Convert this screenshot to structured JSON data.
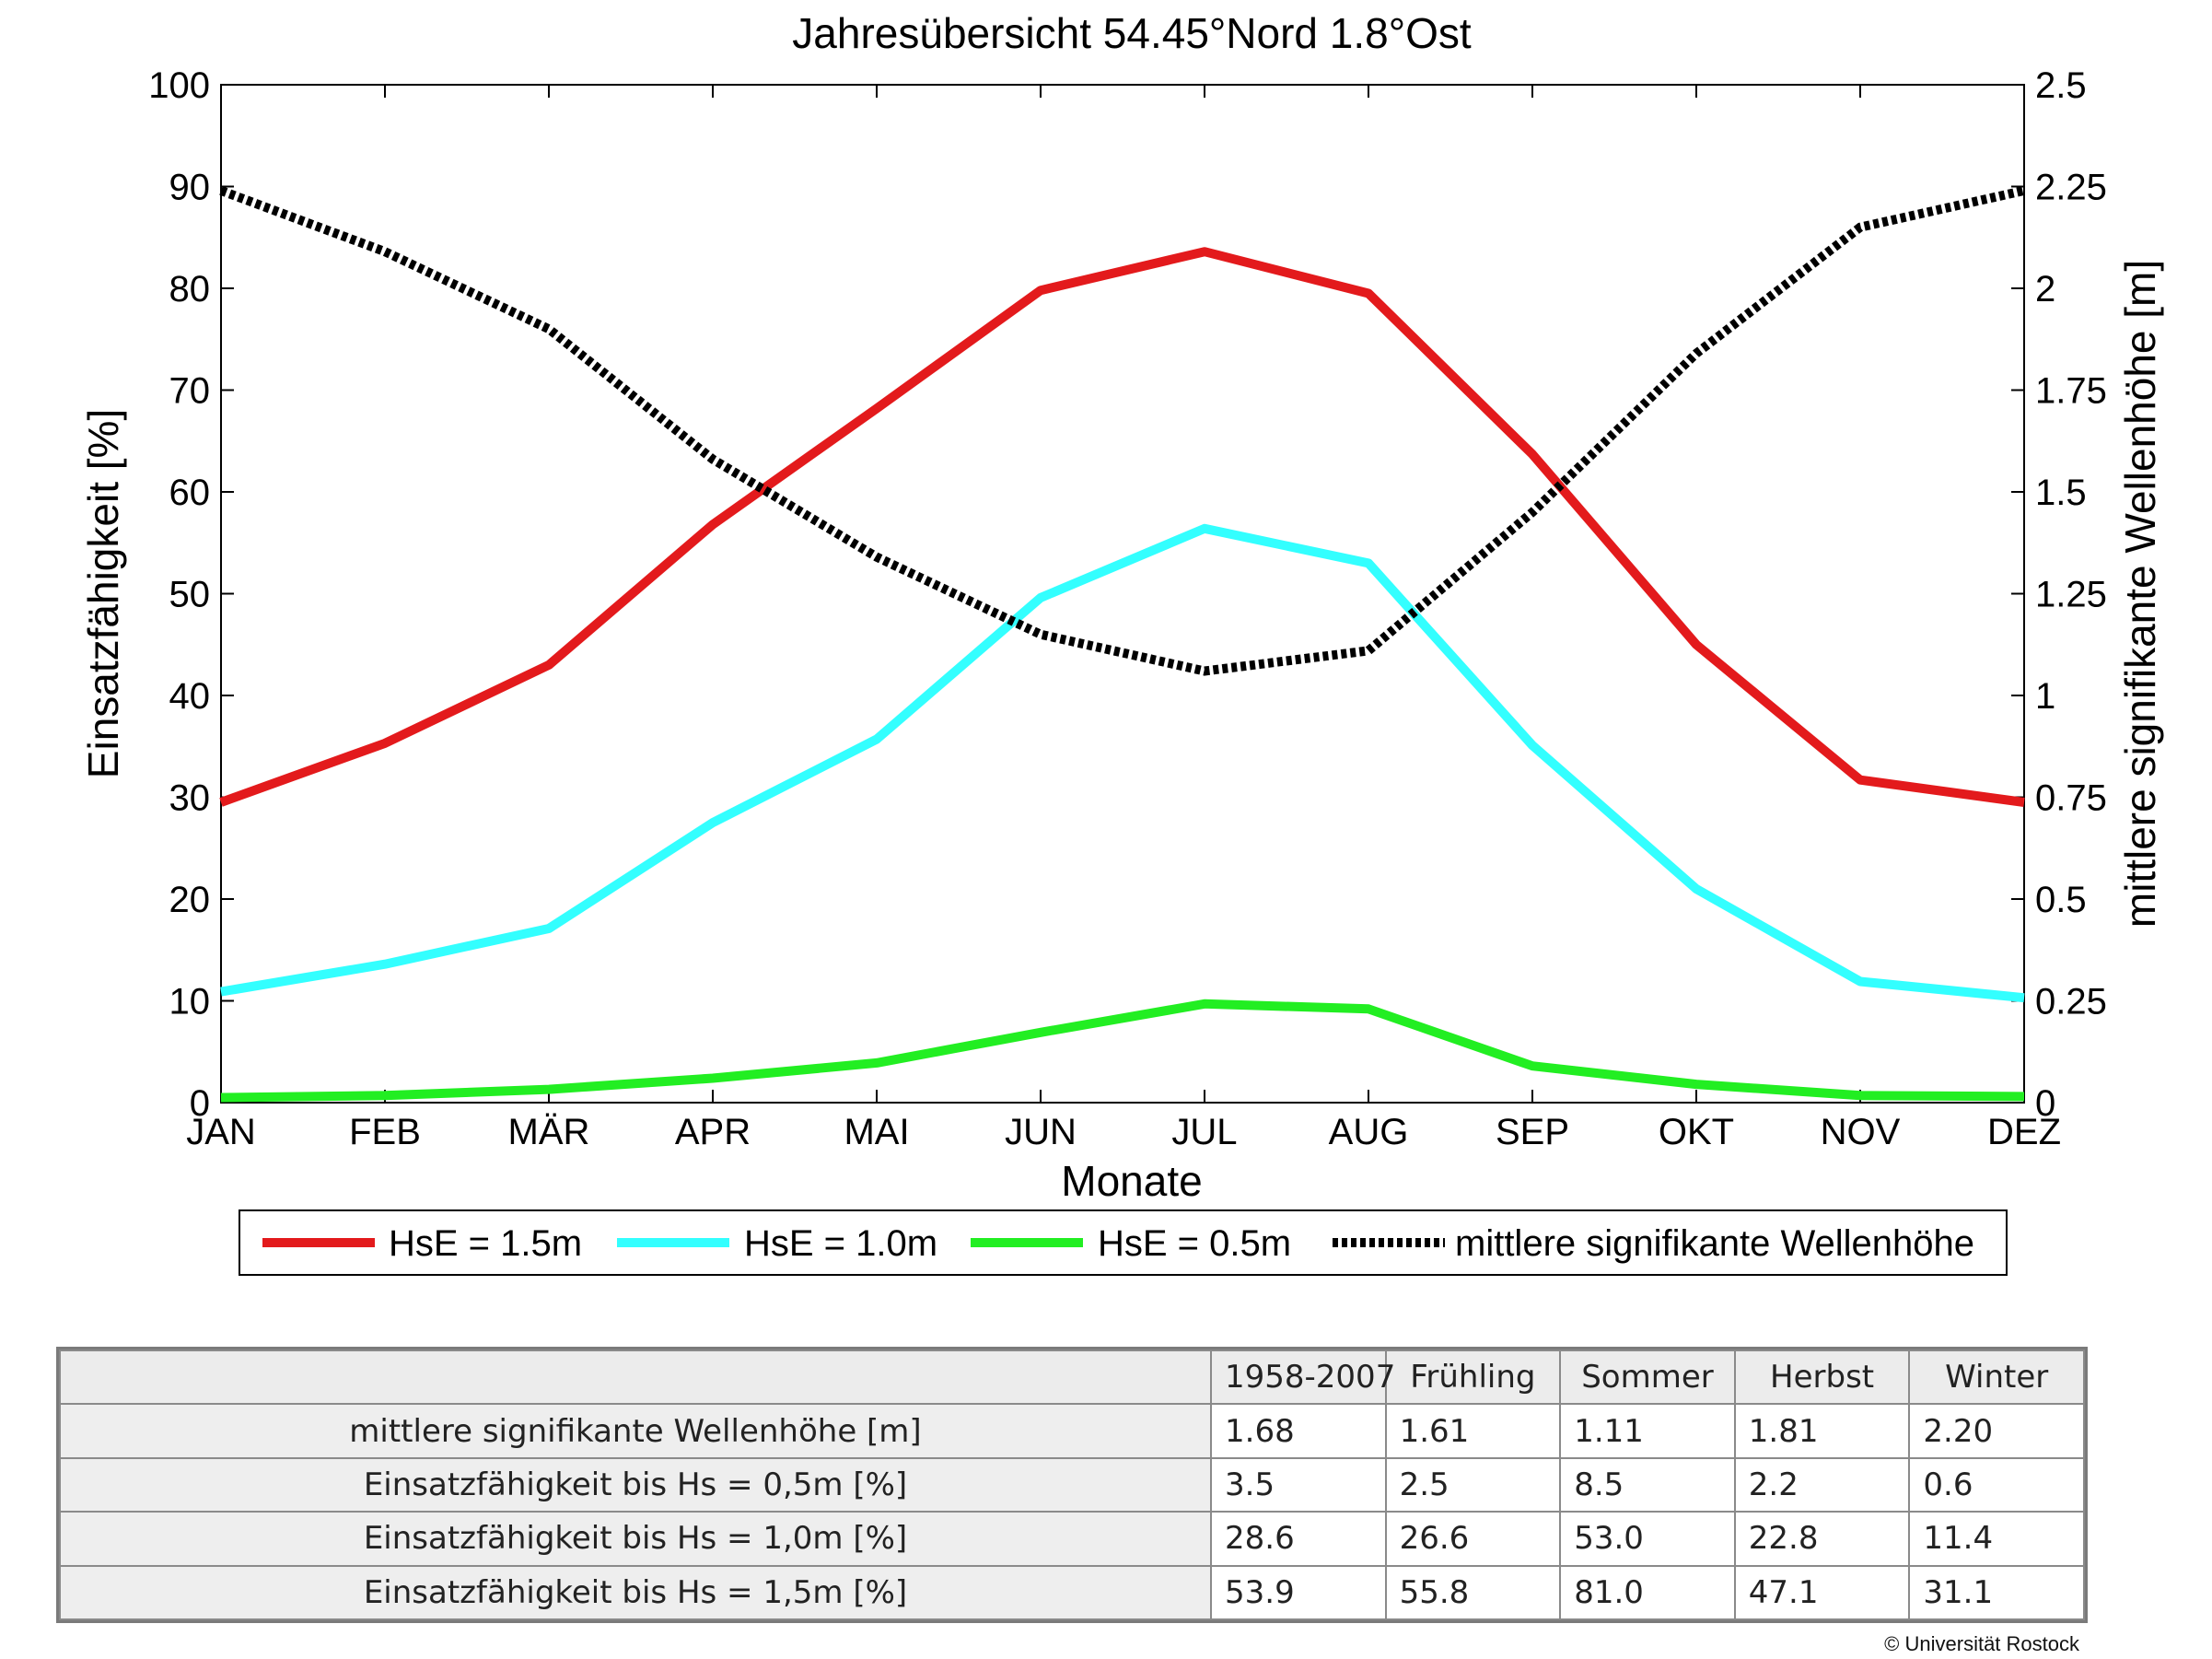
{
  "chart_data": {
    "type": "line",
    "title": "Jahresübersicht  54.45°Nord  1.8°Ost",
    "xlabel": "Monate",
    "ylabel": "Einsatzfähigkeit [%]",
    "y2label": "mittlere signifikante Wellenhöhe [m]",
    "categories": [
      "JAN",
      "FEB",
      "MÄR",
      "APR",
      "MAI",
      "JUN",
      "JUL",
      "AUG",
      "SEP",
      "OKT",
      "NOV",
      "DEZ"
    ],
    "ylim": [
      0,
      100
    ],
    "yticks": [
      "0",
      "10",
      "20",
      "30",
      "40",
      "50",
      "60",
      "70",
      "80",
      "90",
      "100"
    ],
    "y2lim": [
      0,
      2.5
    ],
    "y2ticks": [
      "0",
      "0.25",
      "0.5",
      "0.75",
      "1",
      "1.25",
      "1.5",
      "1.75",
      "2",
      "2.25",
      "2.5"
    ],
    "grid": false,
    "legend_position": "bottom",
    "series": [
      {
        "name": "HsE = 1.5m",
        "axis": "left",
        "color": "#e31a1c",
        "style": "solid",
        "values": [
          29.5,
          35.3,
          43.0,
          56.8,
          68.2,
          79.8,
          83.6,
          79.5,
          63.7,
          45.0,
          31.7,
          29.5
        ]
      },
      {
        "name": "HsE = 1.0m",
        "axis": "left",
        "color": "#33ffff",
        "style": "solid",
        "values": [
          10.9,
          13.6,
          17.1,
          27.5,
          35.7,
          49.6,
          56.4,
          53.0,
          35.1,
          21.0,
          11.9,
          10.3
        ]
      },
      {
        "name": "HsE = 0.5m",
        "axis": "left",
        "color": "#22ee22",
        "style": "solid",
        "values": [
          0.5,
          0.7,
          1.3,
          2.4,
          3.9,
          6.9,
          9.7,
          9.2,
          3.6,
          1.8,
          0.7,
          0.6
        ]
      },
      {
        "name": "mittlere signifikante Wellenhöhe",
        "axis": "right",
        "color": "#000000",
        "style": "dotted",
        "values": [
          2.24,
          2.09,
          1.9,
          1.58,
          1.34,
          1.15,
          1.06,
          1.11,
          1.45,
          1.84,
          2.15,
          2.24
        ]
      }
    ]
  },
  "table": {
    "headers": [
      "",
      "1958-2007",
      "Frühling",
      "Sommer",
      "Herbst",
      "Winter"
    ],
    "rows": [
      {
        "label": "mittlere signifikante Wellenhöhe [m]",
        "values": [
          "1.68",
          "1.61",
          "1.11",
          "1.81",
          "2.20"
        ]
      },
      {
        "label": "Einsatzfähigkeit bis Hs = 0,5m [%]",
        "values": [
          "3.5",
          "2.5",
          "8.5",
          "2.2",
          "0.6"
        ]
      },
      {
        "label": "Einsatzfähigkeit bis Hs = 1,0m [%]",
        "values": [
          "28.6",
          "26.6",
          "53.0",
          "22.8",
          "11.4"
        ]
      },
      {
        "label": "Einsatzfähigkeit bis Hs = 1,5m [%]",
        "values": [
          "53.9",
          "55.8",
          "81.0",
          "47.1",
          "31.1"
        ]
      }
    ]
  },
  "copyright": "© Universität Rostock"
}
